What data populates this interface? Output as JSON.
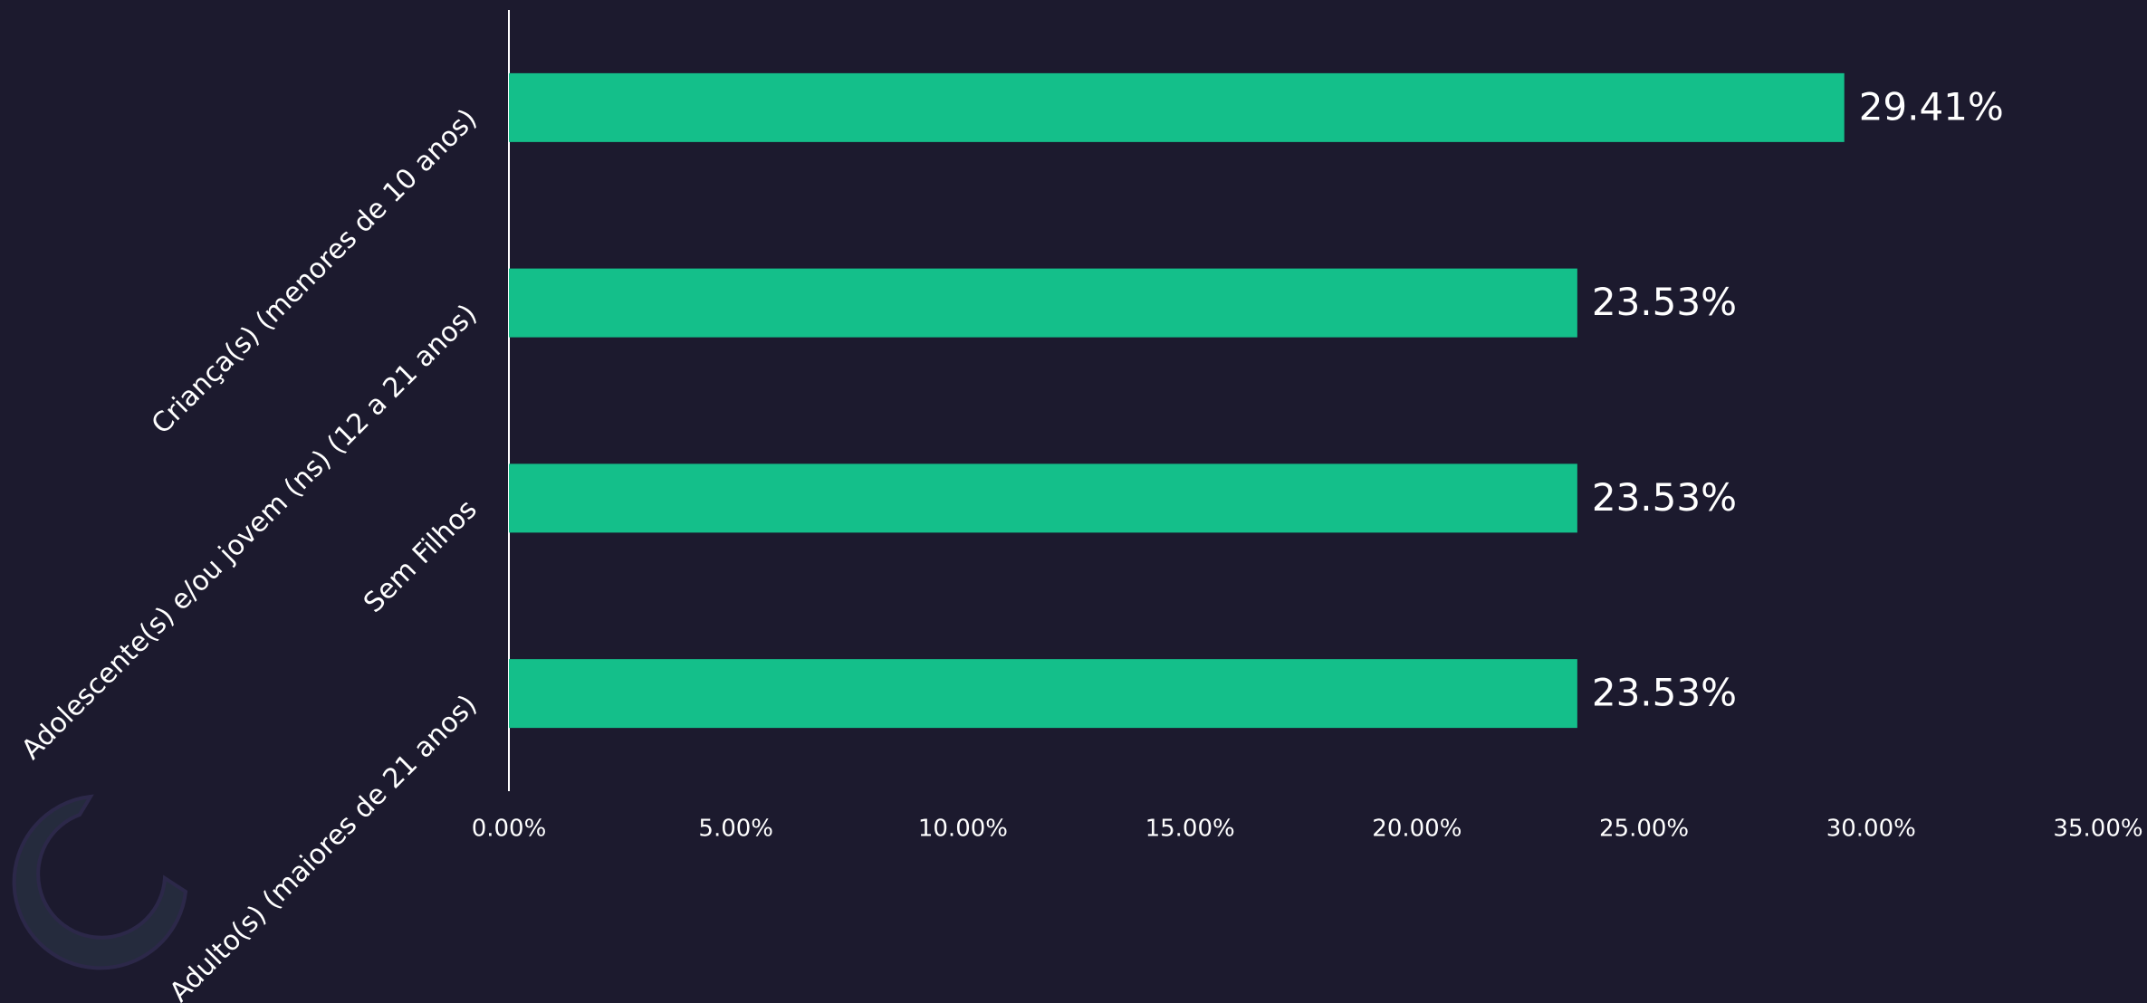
{
  "chart_data": {
    "type": "bar",
    "orientation": "horizontal",
    "categories": [
      "Criança(s) (menores de 10 anos)",
      "Adolescente(s) e/ou jovem (ns) (12 a 21 anos)",
      "Sem Filhos",
      "Adulto(s) (maiores de 21 anos)"
    ],
    "values": [
      29.41,
      23.53,
      23.53,
      23.53
    ],
    "value_labels": [
      "29.41%",
      "23.53%",
      "23.53%",
      "23.53%"
    ],
    "color": "#14bf8a",
    "xlim": [
      0,
      35
    ],
    "xticks": [
      {
        "value": 0,
        "label": "0.00%"
      },
      {
        "value": 5,
        "label": "5.00%"
      },
      {
        "value": 10,
        "label": "10.00%"
      },
      {
        "value": 15,
        "label": "15.00%"
      },
      {
        "value": 20,
        "label": "20.00%"
      },
      {
        "value": 25,
        "label": "25.00%"
      },
      {
        "value": 30,
        "label": "30.00%"
      },
      {
        "value": 35,
        "label": "35.00%"
      }
    ],
    "grid": false
  }
}
